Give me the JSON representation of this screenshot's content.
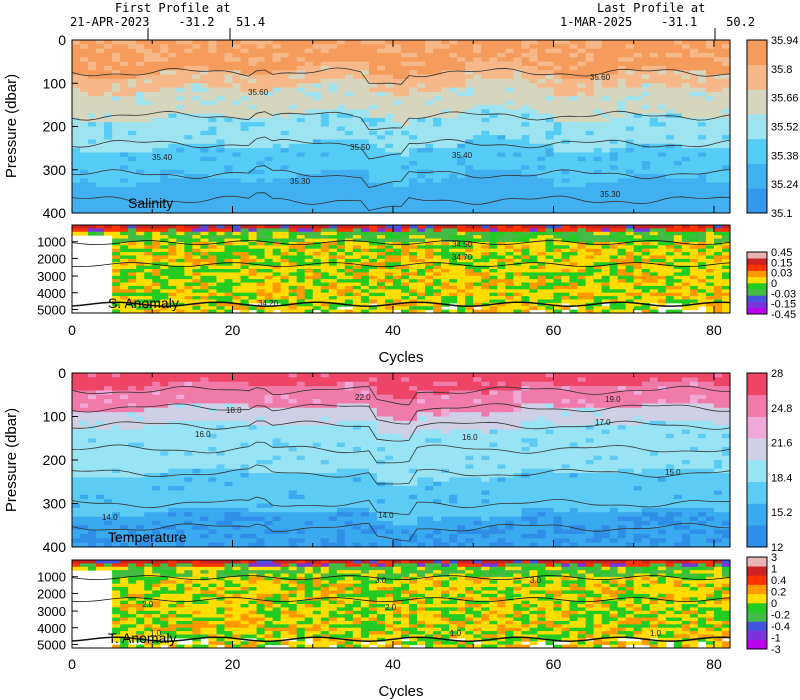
{
  "header": {
    "first_title": "First Profile at",
    "first_info": "21-APR-2023    -31.2   51.4",
    "last_title": "Last Profile at",
    "last_info": "1-MAR-2025    -31.1    50.2"
  },
  "colors": {
    "salinity": [
      "#3399ee",
      "#40b0f0",
      "#55ccf5",
      "#9ee3f0",
      "#d6d6be",
      "#f6b888",
      "#f59c5c"
    ],
    "sal_anom": [
      "#bb00ee",
      "#7a33dd",
      "#4455dd",
      "#44bb44",
      "#22cc22",
      "#ffdd00",
      "#ff9900",
      "#ff3300",
      "#cc2222",
      "#e7b4b4"
    ],
    "temperature": [
      "#2e8ee8",
      "#3aaaf0",
      "#5dccf4",
      "#98e4f4",
      "#cfd0e6",
      "#f0a8d8",
      "#f07aa8",
      "#ee4466"
    ],
    "temp_anom": [
      "#bb00ee",
      "#7a33dd",
      "#4455dd",
      "#44bb44",
      "#22cc22",
      "#ffdd00",
      "#ff9900",
      "#ff3300",
      "#cc2222",
      "#e7b4b4"
    ]
  },
  "chart_data": [
    {
      "type": "heatmap",
      "label": "Salinity",
      "ylabel": "Pressure (dbar)",
      "xlim": [
        0,
        82
      ],
      "ylim": [
        400,
        0
      ],
      "y_ticks": [
        "0",
        "100",
        "200",
        "300",
        "400"
      ],
      "colorbar": [
        "35.94",
        "35.8",
        "35.66",
        "35.52",
        "35.38",
        "35.24",
        "35.1"
      ],
      "layers": [
        {
          "value": "35.90",
          "top": 0,
          "bottom": 85
        },
        {
          "value": "35.60",
          "top": 85,
          "bottom": 180
        },
        {
          "value": "35.50",
          "top": 180,
          "bottom": 240
        },
        {
          "value": "35.40",
          "top": 240,
          "bottom": 330
        },
        {
          "value": "35.30",
          "top": 330,
          "bottom": 400
        }
      ],
      "contour_labels": [
        "35.60",
        "35.60",
        "35.50",
        "35.40",
        "35.40",
        "35.30",
        "35.30"
      ]
    },
    {
      "type": "heatmap",
      "label": "S. Anomaly",
      "xlim": [
        0,
        82
      ],
      "ylim": [
        5200,
        0
      ],
      "y_ticks": [
        "1000",
        "2000",
        "3000",
        "4000",
        "5000"
      ],
      "colorbar": [
        "0.45",
        "0.15",
        "0.03",
        "0",
        "-0.03",
        "-0.15",
        "-0.45"
      ],
      "contour_labels": [
        "34.50",
        "34.70",
        "34.20"
      ]
    },
    {
      "type": "heatmap",
      "label": "Temperature",
      "ylabel": "Pressure (dbar)",
      "xlabel": "Cycles",
      "xlim": [
        0,
        82
      ],
      "ylim": [
        400,
        0
      ],
      "x_ticks": [
        "0",
        "20",
        "40",
        "60",
        "80"
      ],
      "y_ticks": [
        "0",
        "100",
        "200",
        "300",
        "400"
      ],
      "colorbar": [
        "28",
        "24.8",
        "21.6",
        "18.4",
        "15.2",
        "12"
      ],
      "layers": [
        {
          "value": "22.0",
          "top": 0,
          "bottom": 80
        },
        {
          "value": "19.0",
          "top": 80,
          "bottom": 120
        },
        {
          "value": "17.0",
          "top": 120,
          "bottom": 230
        },
        {
          "value": "15.0",
          "top": 230,
          "bottom": 370
        },
        {
          "value": "13.0",
          "top": 370,
          "bottom": 400
        }
      ],
      "contour_labels": [
        "22.0",
        "19.0",
        "18.0",
        "17.0",
        "16.0",
        "16.0",
        "15.0",
        "14.0",
        "14.0"
      ]
    },
    {
      "type": "heatmap",
      "label": "T. Anomaly",
      "xlabel": "Cycles",
      "xlim": [
        0,
        82
      ],
      "ylim": [
        5200,
        0
      ],
      "x_ticks": [
        "0",
        "20",
        "40",
        "60",
        "80"
      ],
      "y_ticks": [
        "1000",
        "2000",
        "3000",
        "4000",
        "5000"
      ],
      "colorbar": [
        "3",
        "1",
        "0.4",
        "0.2",
        "0",
        "-0.2",
        "-0.4",
        "-1",
        "-3"
      ],
      "contour_labels": [
        "3.0",
        "3.0",
        "2.0",
        "2.0",
        "1.0",
        "1.0",
        "1.0"
      ]
    }
  ]
}
